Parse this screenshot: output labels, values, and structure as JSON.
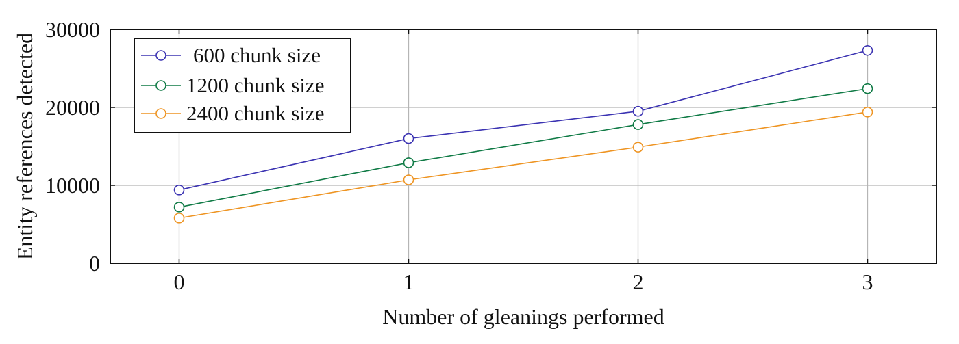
{
  "chart_data": {
    "type": "line",
    "title": "",
    "xlabel": "Number of gleanings performed",
    "ylabel": "Entity references detected",
    "x": [
      0,
      1,
      2,
      3
    ],
    "xlim": [
      -0.3,
      3.3
    ],
    "ylim": [
      0,
      30000
    ],
    "xticks": [
      "0",
      "1",
      "2",
      "3"
    ],
    "yticks": [
      "0",
      "10000",
      "20000",
      "30000"
    ],
    "grid": true,
    "legend_position": "top-left",
    "marker": "open-circle",
    "series": [
      {
        "name": "600 chunk size",
        "color": "#3b33b2",
        "values": [
          9400,
          16000,
          19500,
          27300
        ]
      },
      {
        "name": "1200 chunk size",
        "color": "#0f7a45",
        "values": [
          7200,
          12900,
          17800,
          22400
        ]
      },
      {
        "name": "2400 chunk size",
        "color": "#ee9422",
        "values": [
          5800,
          10700,
          14900,
          19400
        ]
      }
    ]
  }
}
